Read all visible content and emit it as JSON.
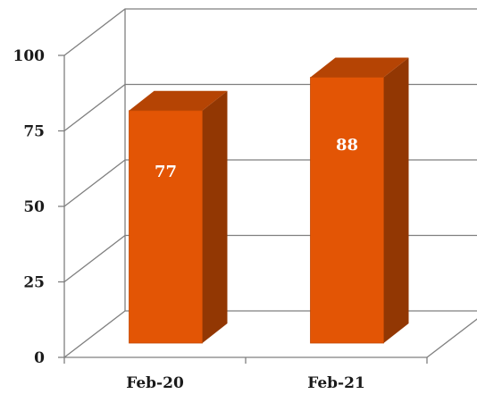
{
  "chart_data": {
    "type": "bar",
    "style": "3d-column",
    "categories": [
      "Feb-20",
      "Feb-21"
    ],
    "values": [
      77,
      88
    ],
    "value_labels": [
      "77",
      "88"
    ],
    "y_ticks": [
      "0",
      "25",
      "50",
      "75",
      "100"
    ],
    "ylim": [
      0,
      100
    ],
    "title": "",
    "xlabel": "",
    "ylabel": "",
    "grid": true,
    "legend": "none",
    "colors": {
      "bar_front": "#E35505",
      "bar_top": "#B54404",
      "bar_side": "#923703",
      "bar_edge": "#C24A05",
      "grid": "#7F7F7F"
    }
  }
}
